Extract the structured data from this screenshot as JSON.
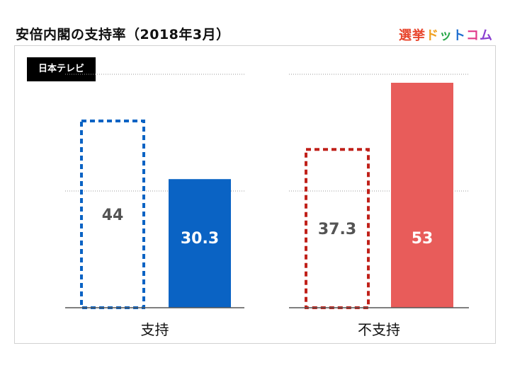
{
  "title": "安倍内閣の支持率（2018年3月）",
  "brand": {
    "chars": [
      {
        "ch": "選",
        "color": "#e8452c"
      },
      {
        "ch": "挙",
        "color": "#e8452c"
      },
      {
        "ch": "ド",
        "color": "#f0a020"
      },
      {
        "ch": "ッ",
        "color": "#2aa84a"
      },
      {
        "ch": "ト",
        "color": "#1f6fd0"
      },
      {
        "ch": "コ",
        "color": "#e03a8a"
      },
      {
        "ch": "ム",
        "color": "#8a3fd0"
      }
    ]
  },
  "source_label": "日本テレビ",
  "colors": {
    "support": "#0a63c4",
    "oppose": "#e85c5a",
    "oppose_prev": "#c0211a",
    "label_dark": "#545454",
    "label_light": "#ffffff"
  },
  "chart_data": {
    "type": "bar",
    "categories": [
      "支持",
      "不支持"
    ],
    "series": [
      {
        "values": [
          44,
          37.3
        ],
        "style": "dashed-outline"
      },
      {
        "values": [
          30.3,
          53
        ],
        "style": "solid"
      }
    ],
    "ylim": [
      0,
      55
    ],
    "grid": true
  }
}
